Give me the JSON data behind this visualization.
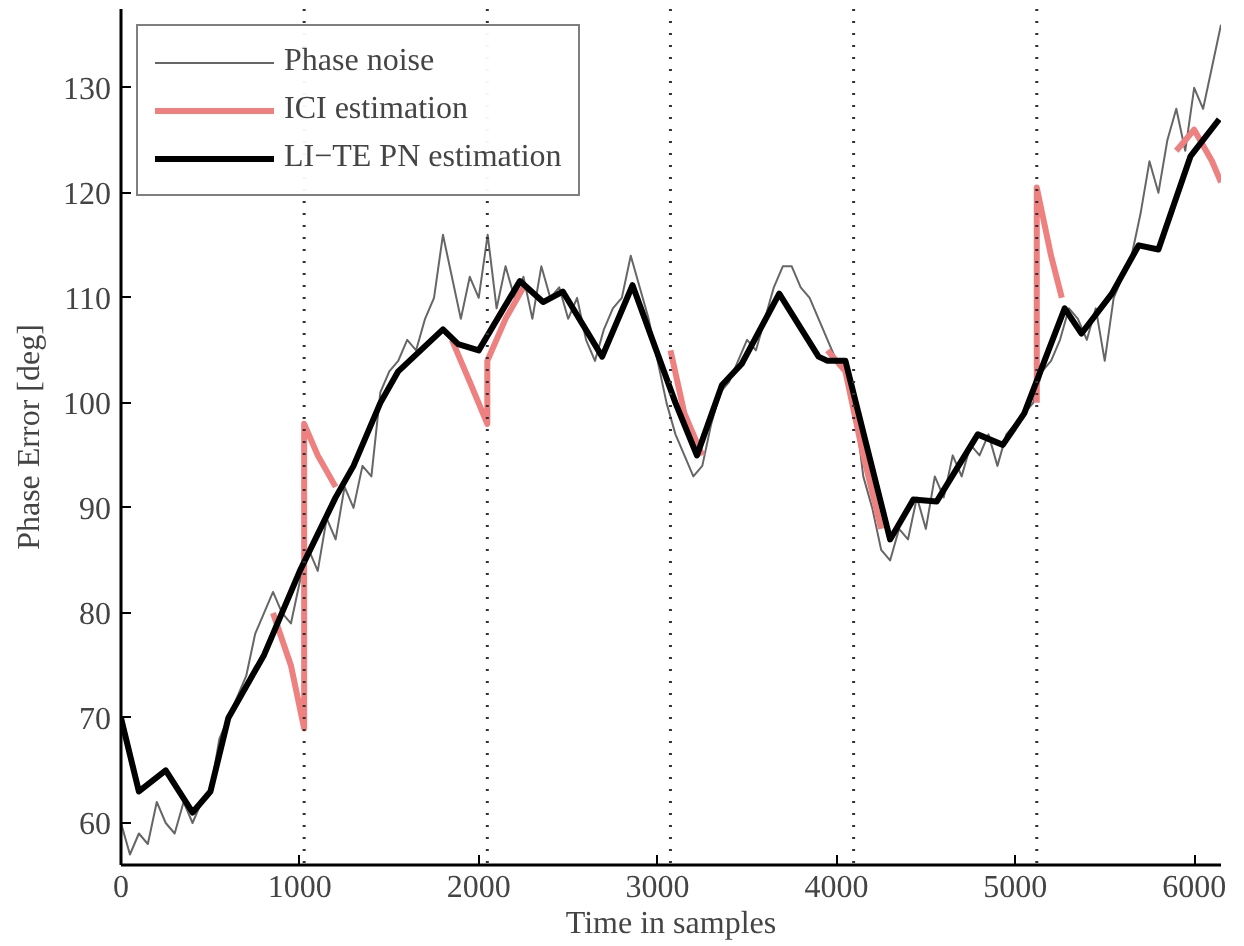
{
  "chart_data": {
    "type": "line",
    "xlabel": "Time in samples",
    "ylabel": "Phase Error [deg]",
    "xlim": [
      0,
      6150
    ],
    "ylim": [
      56,
      137.5
    ],
    "xticks": [
      0,
      1000,
      2000,
      3000,
      4000,
      5000,
      6000
    ],
    "yticks": [
      60,
      70,
      80,
      90,
      100,
      110,
      120,
      130
    ],
    "grid": false,
    "legend": "top left",
    "ref_lines": [
      {
        "axis": "x",
        "value": 1024,
        "line_style": "dotted",
        "color": "#333333"
      },
      {
        "axis": "x",
        "value": 2048,
        "line_style": "dotted",
        "color": "#333333"
      },
      {
        "axis": "x",
        "value": 3072,
        "line_style": "dotted",
        "color": "#333333"
      },
      {
        "axis": "x",
        "value": 4096,
        "line_style": "dotted",
        "color": "#333333"
      },
      {
        "axis": "x",
        "value": 5120,
        "line_style": "dotted",
        "color": "#333333"
      }
    ],
    "series": [
      {
        "name": "Phase noise",
        "color": "#666666",
        "x": [
          0,
          50,
          100,
          150,
          200,
          250,
          300,
          350,
          400,
          450,
          500,
          550,
          600,
          650,
          700,
          750,
          800,
          850,
          900,
          950,
          1000,
          1050,
          1100,
          1150,
          1200,
          1250,
          1300,
          1350,
          1400,
          1450,
          1500,
          1550,
          1600,
          1650,
          1700,
          1750,
          1800,
          1850,
          1900,
          1950,
          2000,
          2050,
          2100,
          2150,
          2200,
          2250,
          2300,
          2350,
          2400,
          2450,
          2500,
          2550,
          2600,
          2650,
          2700,
          2750,
          2800,
          2850,
          2900,
          2950,
          3000,
          3050,
          3100,
          3150,
          3200,
          3250,
          3300,
          3350,
          3400,
          3450,
          3500,
          3550,
          3600,
          3650,
          3700,
          3750,
          3800,
          3850,
          3900,
          3950,
          4000,
          4050,
          4100,
          4150,
          4200,
          4250,
          4300,
          4350,
          4400,
          4450,
          4500,
          4550,
          4600,
          4650,
          4700,
          4750,
          4800,
          4850,
          4900,
          4950,
          5000,
          5050,
          5100,
          5150,
          5200,
          5250,
          5300,
          5350,
          5400,
          5450,
          5500,
          5550,
          5600,
          5650,
          5700,
          5750,
          5800,
          5850,
          5900,
          5950,
          6000,
          6050,
          6100,
          6150
        ],
        "values": [
          60,
          57,
          59,
          58,
          62,
          60,
          59,
          62,
          60,
          62,
          63,
          68,
          70,
          72,
          74,
          78,
          80,
          82,
          80,
          79,
          83,
          86,
          84,
          89,
          87,
          92,
          90,
          94,
          93,
          101,
          103,
          104,
          106,
          105,
          108,
          110,
          116,
          112,
          108,
          112,
          110,
          116,
          109,
          113,
          110,
          112,
          108,
          113,
          110,
          111,
          108,
          110,
          106,
          104,
          107,
          109,
          110,
          114,
          111,
          108,
          104,
          100,
          97,
          95,
          93,
          94,
          98,
          101,
          102,
          104,
          106,
          105,
          108,
          111,
          113,
          113,
          111,
          110,
          108,
          106,
          104,
          103,
          100,
          93,
          90,
          86,
          85,
          88,
          87,
          91,
          88,
          93,
          91,
          95,
          93,
          96,
          95,
          97,
          94,
          97,
          98,
          99,
          100,
          103,
          104,
          106,
          109,
          108,
          106,
          109,
          104,
          110,
          112,
          114,
          118,
          123,
          120,
          125,
          128,
          124,
          130,
          128,
          132,
          136
        ]
      },
      {
        "name": "ICI estimation",
        "color": "#ee8080",
        "x": [
          850,
          950,
          1024,
          1024,
          1100,
          1200,
          1500,
          1850,
          1950,
          2048,
          2048,
          2150,
          2250,
          2600,
          3072,
          3150,
          3250,
          3600,
          3950,
          4050,
          4150,
          4250,
          4700,
          5120,
          5120,
          5200,
          5260,
          5600,
          5900,
          6000,
          6100,
          6150
        ],
        "values": [
          80,
          75,
          69,
          98,
          95,
          92,
          null,
          106,
          102,
          98,
          104,
          108,
          111,
          null,
          105,
          99,
          95,
          null,
          105,
          103,
          95,
          88,
          null,
          100,
          120.5,
          114,
          110,
          null,
          124,
          126,
          123,
          121
        ]
      },
      {
        "name": "LI−TE PN estimation",
        "color": "#000000",
        "x": [
          0,
          100,
          250,
          400,
          500,
          600,
          800,
          1000,
          1200,
          1300,
          1450,
          1550,
          1800,
          1885,
          2000,
          2230,
          2360,
          2470,
          2690,
          2860,
          3100,
          3220,
          3360,
          3470,
          3680,
          3900,
          3950,
          4050,
          4300,
          4430,
          4560,
          4790,
          4930,
          5050,
          5276,
          5370,
          5540,
          5690,
          5800,
          5980,
          6140
        ],
        "values": [
          70,
          63,
          65,
          61,
          63,
          70,
          76,
          84,
          91,
          94,
          100,
          103,
          107,
          105.6,
          105,
          111.6,
          109.6,
          110.6,
          104.4,
          111.2,
          100,
          95,
          101.7,
          103.7,
          110.4,
          104.4,
          104,
          104,
          87,
          90.8,
          90.6,
          97,
          96,
          99,
          109,
          106.6,
          110.4,
          115,
          114.6,
          123.5,
          127
        ]
      }
    ]
  }
}
